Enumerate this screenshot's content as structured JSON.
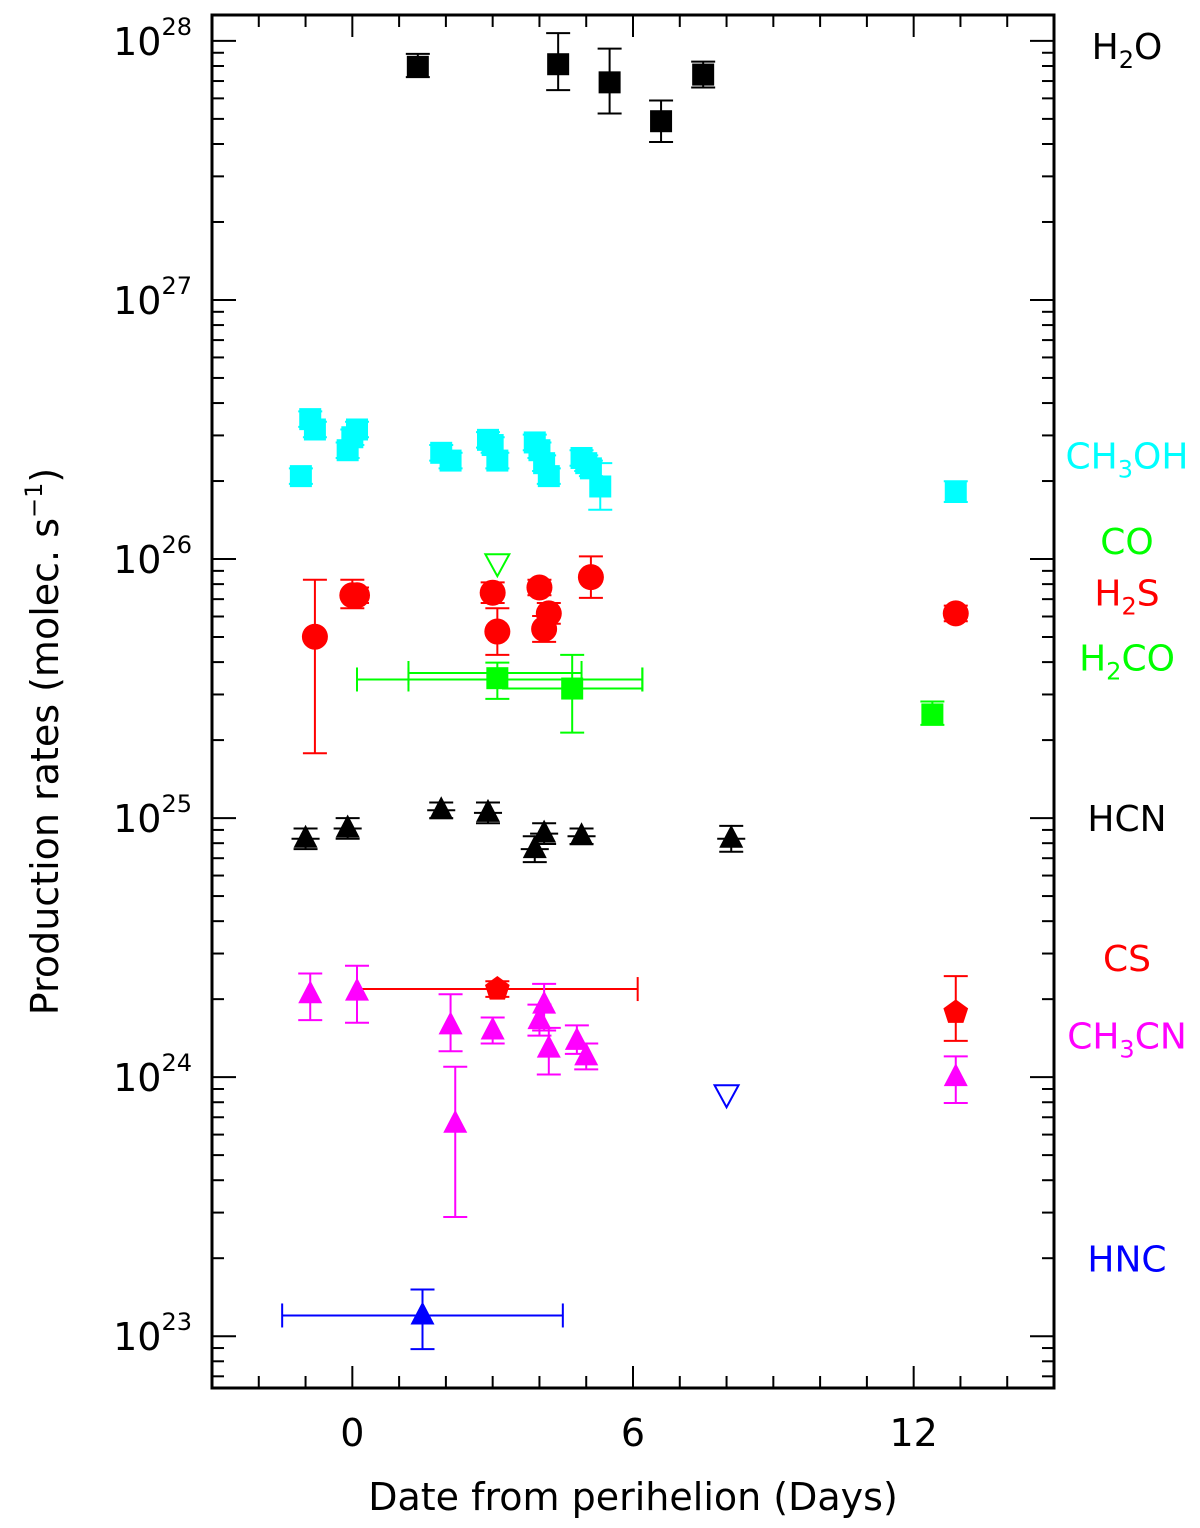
{
  "chart_data": {
    "type": "scatter",
    "title": "",
    "xlabel": "Date from perihelion (Days)",
    "ylabel": "Production rates (molec. s",
    "ylabel_sup": "−1",
    "ylabel_close": ")",
    "xlim": [
      -3,
      15
    ],
    "ylim_log10": [
      22.8,
      28.1
    ],
    "yscale": "log",
    "x_ticks": [
      {
        "value": 0,
        "label": "0"
      },
      {
        "value": 6,
        "label": "6"
      },
      {
        "value": 12,
        "label": "12"
      }
    ],
    "y_ticks": [
      {
        "exp": 23,
        "base": "10",
        "sup": "23"
      },
      {
        "exp": 24,
        "base": "10",
        "sup": "24"
      },
      {
        "exp": 25,
        "base": "10",
        "sup": "25"
      },
      {
        "exp": 26,
        "base": "10",
        "sup": "26"
      },
      {
        "exp": 27,
        "base": "10",
        "sup": "27"
      },
      {
        "exp": 28,
        "base": "10",
        "sup": "28"
      }
    ],
    "series": [
      {
        "name": "H2O",
        "label_parts": [
          [
            "H",
            ""
          ],
          [
            "2",
            "sub"
          ],
          [
            "O",
            ""
          ]
        ],
        "label_log": 27.98,
        "color": "#000000",
        "marker": "square",
        "points": [
          [
            1.4,
            27.9,
            0.04,
            0.05,
            0
          ],
          [
            4.4,
            27.91,
            0.1,
            0.12,
            0
          ],
          [
            5.5,
            27.84,
            0.12,
            0.13,
            0
          ],
          [
            6.6,
            27.69,
            0.08,
            0.08,
            0
          ],
          [
            7.5,
            27.87,
            0.05,
            0.05,
            0
          ]
        ]
      },
      {
        "name": "CH3OH",
        "label_parts": [
          [
            "CH",
            ""
          ],
          [
            "3",
            "sub"
          ],
          [
            "OH",
            ""
          ]
        ],
        "label_log": 26.4,
        "color": "#00ffff",
        "marker": "square",
        "points": [
          [
            -1.1,
            26.32,
            0.03,
            0.03,
            0
          ],
          [
            -0.9,
            26.54,
            0.03,
            0.03,
            0
          ],
          [
            -0.8,
            26.5,
            0.03,
            0.03,
            0
          ],
          [
            -0.1,
            26.42,
            0.03,
            0.03,
            0
          ],
          [
            0.0,
            26.47,
            0.03,
            0.03,
            0
          ],
          [
            0.1,
            26.5,
            0.03,
            0.03,
            0
          ],
          [
            1.9,
            26.41,
            0.03,
            0.03,
            0
          ],
          [
            2.1,
            26.38,
            0.03,
            0.03,
            0
          ],
          [
            2.9,
            26.46,
            0.03,
            0.03,
            0
          ],
          [
            3.0,
            26.44,
            0.03,
            0.03,
            0
          ],
          [
            3.1,
            26.38,
            0.03,
            0.03,
            0
          ],
          [
            3.9,
            26.45,
            0.03,
            0.03,
            0
          ],
          [
            4.0,
            26.42,
            0.03,
            0.03,
            0
          ],
          [
            4.1,
            26.37,
            0.03,
            0.03,
            0
          ],
          [
            4.2,
            26.32,
            0.03,
            0.03,
            0
          ],
          [
            4.9,
            26.39,
            0.03,
            0.03,
            0
          ],
          [
            5.0,
            26.37,
            0.03,
            0.03,
            0
          ],
          [
            5.1,
            26.35,
            0.03,
            0.03,
            0
          ],
          [
            5.3,
            26.28,
            0.09,
            0.09,
            0
          ],
          [
            12.9,
            26.26,
            0.04,
            0.04,
            0
          ]
        ]
      },
      {
        "name": "CO",
        "label_parts": [
          [
            "CO",
            ""
          ]
        ],
        "label_log": 26.07,
        "color": "#00ff00",
        "marker": "triangle-down-open",
        "points": [
          [
            3.1,
            25.98,
            0,
            0,
            0
          ]
        ]
      },
      {
        "name": "H2S",
        "label_parts": [
          [
            "H",
            ""
          ],
          [
            "2",
            "sub"
          ],
          [
            "S",
            ""
          ]
        ],
        "label_log": 25.87,
        "color": "#ff0000",
        "marker": "circle",
        "points": [
          [
            -0.8,
            25.7,
            0.45,
            0.22,
            0
          ],
          [
            0.0,
            25.86,
            0.05,
            0.06,
            0
          ],
          [
            0.1,
            25.86,
            0.03,
            0.03,
            0
          ],
          [
            3.0,
            25.87,
            0.04,
            0.04,
            0
          ],
          [
            3.1,
            25.72,
            0.09,
            0.09,
            0
          ],
          [
            4.0,
            25.89,
            0.03,
            0.03,
            0
          ],
          [
            4.1,
            25.73,
            0.05,
            0.05,
            0
          ],
          [
            4.2,
            25.79,
            0.04,
            0.04,
            0
          ],
          [
            5.1,
            25.93,
            0.08,
            0.08,
            0
          ],
          [
            12.9,
            25.79,
            0.03,
            0.03,
            0
          ]
        ]
      },
      {
        "name": "H2CO",
        "label_parts": [
          [
            "H",
            ""
          ],
          [
            "2",
            "sub"
          ],
          [
            "CO",
            ""
          ]
        ],
        "label_log": 25.62,
        "color": "#00ff00",
        "marker": "square",
        "points": [
          [
            3.1,
            25.54,
            0.08,
            0.06,
            0
          ],
          [
            4.7,
            25.5,
            0.17,
            0.13,
            1.5
          ],
          [
            12.4,
            25.4,
            0.04,
            0.05,
            0
          ]
        ],
        "h_errors": [
          [
            0.1,
            6.2,
            25.535
          ],
          [
            1.2,
            6.2,
            25.535
          ],
          [
            1.2,
            4.9,
            25.56
          ]
        ]
      },
      {
        "name": "HCN",
        "label_parts": [
          [
            "HCN",
            ""
          ]
        ],
        "label_log": 25.0,
        "color": "#000000",
        "marker": "triangle",
        "points": [
          [
            -1.0,
            24.92,
            0.04,
            0.04,
            0.3
          ],
          [
            -0.1,
            24.96,
            0.04,
            0.04,
            0.3
          ],
          [
            1.9,
            25.03,
            0.03,
            0.03,
            0.3
          ],
          [
            2.9,
            25.02,
            0.04,
            0.04,
            0.3
          ],
          [
            3.9,
            24.88,
            0.05,
            0.05,
            0.3
          ],
          [
            4.1,
            24.94,
            0.04,
            0.04,
            0.3
          ],
          [
            4.9,
            24.93,
            0.03,
            0.03,
            0.3
          ],
          [
            8.1,
            24.92,
            0.05,
            0.05,
            0.3
          ]
        ]
      },
      {
        "name": "CS",
        "label_parts": [
          [
            "CS",
            ""
          ]
        ],
        "label_log": 24.46,
        "color": "#ff0000",
        "marker": "pentagon",
        "points": [
          [
            3.1,
            24.34,
            0.03,
            0.03,
            0
          ],
          [
            12.9,
            24.25,
            0.11,
            0.14,
            0
          ]
        ],
        "h_errors": [
          [
            0.1,
            6.1,
            24.34
          ]
        ]
      },
      {
        "name": "CH3CN",
        "label_parts": [
          [
            "CH",
            ""
          ],
          [
            "3",
            "sub"
          ],
          [
            "CN",
            ""
          ]
        ],
        "label_log": 24.16,
        "color": "#ff00ff",
        "marker": "triangle",
        "points": [
          [
            -0.9,
            24.32,
            0.1,
            0.08,
            0
          ],
          [
            0.1,
            24.33,
            0.12,
            0.1,
            0
          ],
          [
            2.1,
            24.2,
            0.1,
            0.12,
            0
          ],
          [
            2.2,
            23.82,
            0.36,
            0.22,
            0
          ],
          [
            3.0,
            24.18,
            0.05,
            0.05,
            0
          ],
          [
            4.0,
            24.22,
            0.06,
            0.06,
            0
          ],
          [
            4.1,
            24.28,
            0.1,
            0.08,
            0
          ],
          [
            4.2,
            24.11,
            0.1,
            0.08,
            0
          ],
          [
            4.8,
            24.14,
            0.05,
            0.06,
            0
          ],
          [
            5.0,
            24.08,
            0.05,
            0.05,
            0
          ],
          [
            12.9,
            24.0,
            0.1,
            0.08,
            0
          ]
        ]
      },
      {
        "name": "HNC",
        "label_parts": [
          [
            "HNC",
            ""
          ]
        ],
        "label_log": 23.3,
        "color": "#0000ff",
        "marker": "triangle",
        "points": [
          [
            1.5,
            23.08,
            0.13,
            0.1,
            0
          ],
          [
            8.0,
            23.93,
            0,
            0,
            0,
            "ul"
          ]
        ],
        "h_errors": [
          [
            -1.5,
            4.5,
            23.08
          ]
        ]
      }
    ]
  }
}
